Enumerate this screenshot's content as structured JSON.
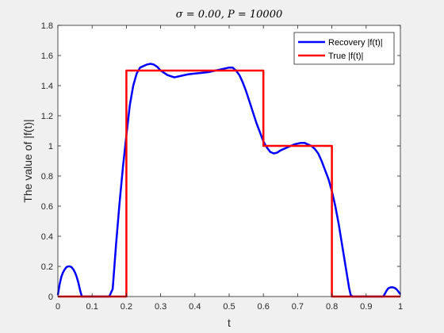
{
  "chart_data": {
    "type": "line",
    "title": "σ = 0.00,    P = 10000",
    "xlabel": "t",
    "ylabel": "The value of |f(t)|",
    "xlim": [
      0,
      1
    ],
    "ylim": [
      0,
      1.8
    ],
    "xticks": [
      0,
      0.1,
      0.2,
      0.3,
      0.4,
      0.5,
      0.6,
      0.7,
      0.8,
      0.9,
      1
    ],
    "yticks": [
      0,
      0.2,
      0.4,
      0.6,
      0.8,
      1,
      1.2,
      1.4,
      1.6,
      1.8
    ],
    "xtick_labels": [
      "0",
      "0.1",
      "0.2",
      "0.3",
      "0.4",
      "0.5",
      "0.6",
      "0.7",
      "0.8",
      "0.9",
      "1"
    ],
    "ytick_labels": [
      "0",
      "0.2",
      "0.4",
      "0.6",
      "0.8",
      "1",
      "1.2",
      "1.4",
      "1.6",
      "1.8"
    ],
    "grid": false,
    "legend_position": "top-right",
    "series": [
      {
        "name": "Recovery |f(t)|",
        "color": "#0000ff",
        "x": [
          0,
          0.005,
          0.01,
          0.015,
          0.02,
          0.025,
          0.03,
          0.035,
          0.04,
          0.045,
          0.05,
          0.055,
          0.06,
          0.065,
          0.07,
          0.075,
          0.08,
          0.1,
          0.12,
          0.14,
          0.15,
          0.16,
          0.17,
          0.18,
          0.19,
          0.2,
          0.21,
          0.22,
          0.23,
          0.24,
          0.25,
          0.26,
          0.27,
          0.28,
          0.29,
          0.3,
          0.32,
          0.34,
          0.36,
          0.38,
          0.4,
          0.42,
          0.44,
          0.46,
          0.48,
          0.5,
          0.51,
          0.52,
          0.53,
          0.54,
          0.55,
          0.56,
          0.57,
          0.58,
          0.59,
          0.6,
          0.61,
          0.62,
          0.63,
          0.64,
          0.65,
          0.66,
          0.67,
          0.68,
          0.69,
          0.7,
          0.71,
          0.72,
          0.73,
          0.74,
          0.75,
          0.76,
          0.77,
          0.78,
          0.79,
          0.8,
          0.81,
          0.82,
          0.83,
          0.84,
          0.85,
          0.855,
          0.86,
          0.87,
          0.9,
          0.93,
          0.95,
          0.955,
          0.96,
          0.965,
          0.97,
          0.975,
          0.98,
          0.985,
          0.99,
          0.995,
          1.0
        ],
        "y": [
          0.01,
          0.08,
          0.13,
          0.16,
          0.18,
          0.195,
          0.2,
          0.2,
          0.195,
          0.18,
          0.16,
          0.13,
          0.09,
          0.04,
          0.0,
          0.0,
          0.0,
          0.0,
          0.0,
          0.0,
          0.0,
          0.05,
          0.35,
          0.62,
          0.86,
          1.07,
          1.27,
          1.4,
          1.48,
          1.52,
          1.53,
          1.54,
          1.545,
          1.54,
          1.525,
          1.5,
          1.47,
          1.455,
          1.465,
          1.475,
          1.48,
          1.485,
          1.49,
          1.5,
          1.51,
          1.52,
          1.52,
          1.5,
          1.47,
          1.42,
          1.36,
          1.29,
          1.22,
          1.15,
          1.09,
          1.03,
          0.99,
          0.96,
          0.95,
          0.955,
          0.97,
          0.98,
          0.99,
          1.0,
          1.01,
          1.015,
          1.02,
          1.02,
          1.01,
          1.0,
          0.98,
          0.95,
          0.9,
          0.84,
          0.78,
          0.7,
          0.6,
          0.48,
          0.34,
          0.2,
          0.06,
          0.01,
          0.0,
          0.0,
          0.0,
          0.0,
          0.0,
          0.02,
          0.04,
          0.055,
          0.06,
          0.062,
          0.06,
          0.055,
          0.045,
          0.03,
          0.015
        ]
      },
      {
        "name": "True |f(t)|",
        "color": "#ff0000",
        "x": [
          0,
          0.2,
          0.2,
          0.6,
          0.6,
          0.8,
          0.8,
          1.0
        ],
        "y": [
          0,
          0,
          1.5,
          1.5,
          1,
          1,
          0,
          0
        ]
      }
    ]
  }
}
